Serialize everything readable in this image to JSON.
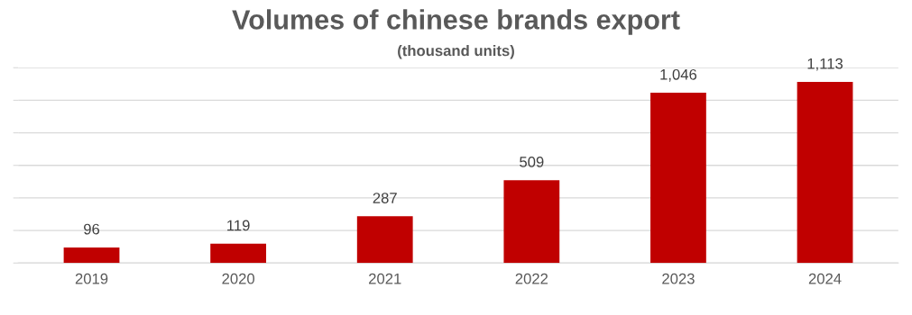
{
  "chart_data": {
    "type": "bar",
    "title": "Volumes of chinese brands export",
    "subtitle": "(thousand units)",
    "categories": [
      "2019",
      "2020",
      "2021",
      "2022",
      "2023",
      "2024"
    ],
    "values": [
      96,
      119,
      287,
      509,
      1046,
      1113
    ],
    "value_labels": [
      "96",
      "119",
      "287",
      "509",
      "1,046",
      "1,113"
    ],
    "color": "#c00000",
    "ylim": [
      0,
      1200
    ],
    "yticks": [
      {
        "value": 0,
        "label": null
      },
      {
        "value": 200,
        "label": null
      },
      {
        "value": 400,
        "label": null
      },
      {
        "value": 600,
        "label": null
      },
      {
        "value": 800,
        "label": null
      },
      {
        "value": 1000,
        "label": null
      },
      {
        "value": 1200,
        "label": null
      }
    ],
    "grid": "y",
    "legend": false,
    "tick_labels": "x"
  }
}
